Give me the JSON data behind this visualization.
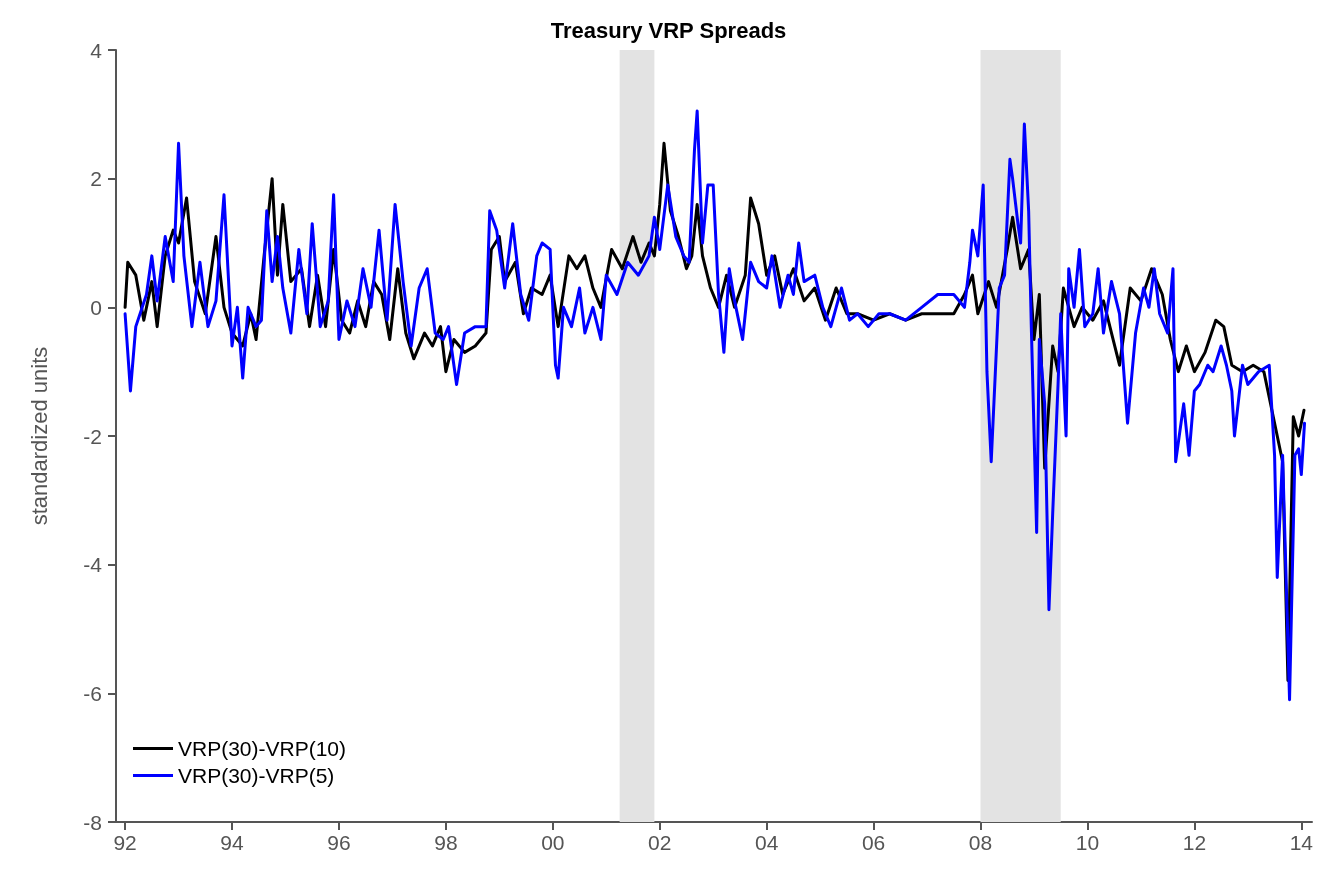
{
  "chart_data": {
    "type": "line",
    "title": "Treasury VRP Spreads",
    "ylabel": "standardized units",
    "xlim": [
      1991.83,
      2014.2
    ],
    "xticks": [
      {
        "value": 1992,
        "label": "92"
      },
      {
        "value": 1994,
        "label": "94"
      },
      {
        "value": 1996,
        "label": "96"
      },
      {
        "value": 1998,
        "label": "98"
      },
      {
        "value": 2000,
        "label": "00"
      },
      {
        "value": 2002,
        "label": "02"
      },
      {
        "value": 2004,
        "label": "04"
      },
      {
        "value": 2006,
        "label": "06"
      },
      {
        "value": 2008,
        "label": "08"
      },
      {
        "value": 2010,
        "label": "10"
      },
      {
        "value": 2012,
        "label": "12"
      },
      {
        "value": 2014,
        "label": "14"
      }
    ],
    "ylim": [
      -8,
      4
    ],
    "yticks": [
      -8,
      -6,
      -4,
      -2,
      0,
      2,
      4
    ],
    "grid": false,
    "legend": "bottom left",
    "bands": [
      {
        "axis": "x",
        "from": 2001.25,
        "to": 2001.9,
        "color": "#e3e3e3"
      },
      {
        "axis": "x",
        "from": 2008.0,
        "to": 2009.5,
        "color": "#e3e3e3"
      }
    ],
    "series": [
      {
        "name": "VRP(30)-VRP(10)",
        "color": "#000000",
        "x": [
          1992.0,
          1992.05,
          1992.2,
          1992.35,
          1992.5,
          1992.6,
          1992.75,
          1992.9,
          1993.0,
          1993.15,
          1993.3,
          1993.5,
          1993.7,
          1993.85,
          1994.0,
          1994.2,
          1994.35,
          1994.45,
          1994.6,
          1994.75,
          1994.85,
          1994.95,
          1995.1,
          1995.3,
          1995.45,
          1995.6,
          1995.75,
          1995.9,
          1996.05,
          1996.2,
          1996.35,
          1996.5,
          1996.65,
          1996.8,
          1996.95,
          1997.1,
          1997.25,
          1997.4,
          1997.6,
          1997.75,
          1997.9,
          1998.0,
          1998.15,
          1998.35,
          1998.55,
          1998.75,
          1998.85,
          1999.0,
          1999.1,
          1999.3,
          1999.45,
          1999.6,
          1999.8,
          1999.95,
          2000.1,
          2000.3,
          2000.45,
          2000.6,
          2000.75,
          2000.9,
          2001.1,
          2001.3,
          2001.5,
          2001.65,
          2001.8,
          2001.9,
          2002.0,
          2002.08,
          2002.2,
          2002.35,
          2002.5,
          2002.6,
          2002.7,
          2002.8,
          2002.95,
          2003.1,
          2003.25,
          2003.4,
          2003.6,
          2003.7,
          2003.85,
          2004.0,
          2004.15,
          2004.3,
          2004.5,
          2004.7,
          2004.9,
          2005.1,
          2005.3,
          2005.5,
          2005.7,
          2006.0,
          2006.3,
          2006.6,
          2006.9,
          2007.2,
          2007.5,
          2007.7,
          2007.85,
          2007.95,
          2008.15,
          2008.3,
          2008.5,
          2008.6,
          2008.75,
          2008.9,
          2009.0,
          2009.1,
          2009.2,
          2009.35,
          2009.45,
          2009.55,
          2009.75,
          2009.9,
          2010.1,
          2010.3,
          2010.45,
          2010.6,
          2010.8,
          2011.0,
          2011.2,
          2011.4,
          2011.55,
          2011.7,
          2011.85,
          2012.0,
          2012.2,
          2012.4,
          2012.55,
          2012.7,
          2012.9,
          2013.1,
          2013.3,
          2013.45,
          2013.55,
          2013.65,
          2013.75,
          2013.85,
          2013.95,
          2014.05
        ],
        "values": [
          0.0,
          0.7,
          0.5,
          -0.2,
          0.4,
          -0.3,
          0.8,
          1.2,
          1.0,
          1.7,
          0.4,
          -0.1,
          1.1,
          0.0,
          -0.4,
          -0.6,
          -0.1,
          -0.5,
          0.8,
          2.0,
          0.5,
          1.6,
          0.4,
          0.6,
          -0.3,
          0.5,
          -0.3,
          0.9,
          -0.2,
          -0.4,
          0.1,
          -0.3,
          0.4,
          0.2,
          -0.5,
          0.6,
          -0.4,
          -0.8,
          -0.4,
          -0.6,
          -0.3,
          -1.0,
          -0.5,
          -0.7,
          -0.6,
          -0.4,
          0.9,
          1.1,
          0.4,
          0.7,
          -0.1,
          0.3,
          0.2,
          0.5,
          -0.3,
          0.8,
          0.6,
          0.8,
          0.3,
          0.0,
          0.9,
          0.6,
          1.1,
          0.7,
          1.0,
          0.8,
          1.6,
          2.55,
          1.5,
          1.1,
          0.6,
          0.8,
          1.6,
          0.8,
          0.3,
          0.0,
          0.5,
          0.0,
          0.5,
          1.7,
          1.3,
          0.5,
          0.8,
          0.2,
          0.6,
          0.1,
          0.3,
          -0.2,
          0.3,
          -0.1,
          -0.1,
          -0.2,
          -0.1,
          -0.2,
          -0.1,
          -0.1,
          -0.1,
          0.2,
          0.5,
          -0.1,
          0.4,
          0.0,
          0.9,
          1.4,
          0.6,
          0.9,
          -0.5,
          0.2,
          -2.5,
          -0.6,
          -1.0,
          0.3,
          -0.3,
          0.0,
          -0.2,
          0.1,
          -0.4,
          -0.9,
          0.3,
          0.1,
          0.6,
          0.2,
          -0.5,
          -1.0,
          -0.6,
          -1.0,
          -0.7,
          -0.2,
          -0.3,
          -0.9,
          -1.0,
          -0.9,
          -1.0,
          -1.6,
          -2.0,
          -2.4,
          -5.8,
          -1.7,
          -2.0,
          -1.6
        ]
      },
      {
        "name": "VRP(30)-VRP(5)",
        "color": "#0000ff",
        "x": [
          1992.0,
          1992.1,
          1992.2,
          1992.4,
          1992.5,
          1992.6,
          1992.75,
          1992.9,
          1993.0,
          1993.1,
          1993.25,
          1993.4,
          1993.55,
          1993.7,
          1993.85,
          1994.0,
          1994.1,
          1994.2,
          1994.3,
          1994.45,
          1994.55,
          1994.65,
          1994.75,
          1994.85,
          1994.95,
          1995.1,
          1995.25,
          1995.4,
          1995.5,
          1995.65,
          1995.8,
          1995.9,
          1996.0,
          1996.15,
          1996.3,
          1996.45,
          1996.6,
          1996.75,
          1996.9,
          1997.05,
          1997.2,
          1997.35,
          1997.5,
          1997.65,
          1997.8,
          1997.95,
          1998.05,
          1998.2,
          1998.35,
          1998.55,
          1998.75,
          1998.82,
          1998.95,
          1999.1,
          1999.25,
          1999.4,
          1999.55,
          1999.7,
          1999.8,
          1999.95,
          2000.05,
          2000.1,
          2000.2,
          2000.35,
          2000.5,
          2000.6,
          2000.75,
          2000.9,
          2001.0,
          2001.2,
          2001.4,
          2001.6,
          2001.8,
          2001.9,
          2002.0,
          2002.15,
          2002.3,
          2002.45,
          2002.55,
          2002.65,
          2002.7,
          2002.8,
          2002.9,
          2003.0,
          2003.1,
          2003.2,
          2003.3,
          2003.4,
          2003.55,
          2003.7,
          2003.85,
          2004.0,
          2004.1,
          2004.25,
          2004.4,
          2004.5,
          2004.6,
          2004.7,
          2004.9,
          2005.05,
          2005.2,
          2005.4,
          2005.55,
          2005.7,
          2005.9,
          2006.1,
          2006.3,
          2006.6,
          2006.9,
          2007.2,
          2007.5,
          2007.7,
          2007.8,
          2007.85,
          2007.95,
          2008.05,
          2008.12,
          2008.2,
          2008.35,
          2008.45,
          2008.55,
          2008.6,
          2008.7,
          2008.75,
          2008.82,
          2008.9,
          2008.95,
          2009.05,
          2009.1,
          2009.2,
          2009.28,
          2009.35,
          2009.45,
          2009.5,
          2009.6,
          2009.65,
          2009.75,
          2009.85,
          2009.95,
          2010.1,
          2010.2,
          2010.3,
          2010.45,
          2010.6,
          2010.75,
          2010.9,
          2011.05,
          2011.15,
          2011.25,
          2011.35,
          2011.5,
          2011.6,
          2011.65,
          2011.8,
          2011.9,
          2012.0,
          2012.1,
          2012.25,
          2012.35,
          2012.5,
          2012.6,
          2012.7,
          2012.75,
          2012.9,
          2013.0,
          2013.2,
          2013.4,
          2013.5,
          2013.55,
          2013.65,
          2013.78,
          2013.88,
          2013.95,
          2014.0,
          2014.06
        ],
        "values": [
          -0.1,
          -1.3,
          -0.3,
          0.2,
          0.8,
          0.1,
          1.1,
          0.4,
          2.55,
          0.8,
          -0.3,
          0.7,
          -0.3,
          0.1,
          1.75,
          -0.6,
          0.0,
          -1.1,
          0.0,
          -0.3,
          -0.2,
          1.5,
          0.4,
          1.1,
          0.3,
          -0.4,
          0.9,
          -0.1,
          1.3,
          -0.3,
          0.1,
          1.75,
          -0.5,
          0.1,
          -0.3,
          0.6,
          0.0,
          1.2,
          -0.2,
          1.6,
          0.4,
          -0.6,
          0.3,
          0.6,
          -0.4,
          -0.5,
          -0.3,
          -1.2,
          -0.4,
          -0.3,
          -0.3,
          1.5,
          1.2,
          0.3,
          1.3,
          0.2,
          -0.2,
          0.8,
          1.0,
          0.9,
          -0.9,
          -1.1,
          0.0,
          -0.3,
          0.3,
          -0.4,
          0.0,
          -0.5,
          0.5,
          0.2,
          0.7,
          0.5,
          0.8,
          1.4,
          0.9,
          1.9,
          1.1,
          0.8,
          0.7,
          2.45,
          3.05,
          1.0,
          1.9,
          1.9,
          0.2,
          -0.7,
          0.6,
          0.1,
          -0.5,
          0.7,
          0.4,
          0.3,
          0.8,
          0.0,
          0.5,
          0.2,
          1.0,
          0.4,
          0.5,
          0.0,
          -0.3,
          0.3,
          -0.2,
          -0.1,
          -0.3,
          -0.1,
          -0.1,
          -0.2,
          0.0,
          0.2,
          0.2,
          0.0,
          0.7,
          1.2,
          0.8,
          1.9,
          -1.0,
          -2.4,
          0.3,
          0.5,
          2.3,
          2.0,
          1.3,
          1.0,
          2.85,
          1.5,
          -0.3,
          -3.5,
          -0.5,
          -1.5,
          -4.7,
          -3.2,
          -1.2,
          -0.1,
          -2.0,
          0.6,
          0.0,
          0.9,
          -0.3,
          -0.1,
          0.6,
          -0.4,
          0.4,
          -0.1,
          -1.8,
          -0.4,
          0.3,
          0.0,
          0.6,
          -0.1,
          -0.4,
          0.6,
          -2.4,
          -1.5,
          -2.3,
          -1.3,
          -1.2,
          -0.9,
          -1.0,
          -0.6,
          -0.9,
          -1.3,
          -2.0,
          -0.9,
          -1.2,
          -1.0,
          -0.9,
          -2.3,
          -4.2,
          -2.3,
          -6.1,
          -2.3,
          -2.2,
          -2.6,
          -1.8
        ]
      }
    ]
  }
}
